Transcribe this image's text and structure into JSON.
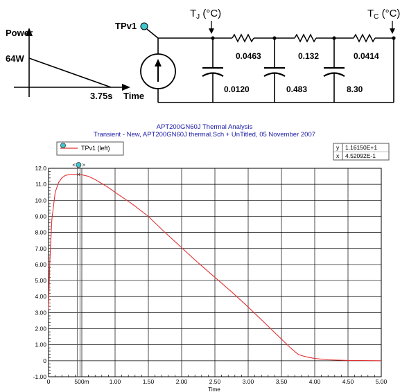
{
  "diagram": {
    "power_label": "Power",
    "power_value": "64W",
    "time_value": "3.75s",
    "time_label": "Time",
    "node_label": "TPv1",
    "tj_label": "T",
    "tj_sub": "J",
    "tj_unit": " (°C)",
    "tc_label": "T",
    "tc_sub": "C",
    "tc_unit": " (°C)",
    "resistors": [
      "0.0463",
      "0.132",
      "0.0414"
    ],
    "capacitors": [
      "0.0120",
      "0.483",
      "8.30"
    ]
  },
  "header": {
    "title": "APT200GN60J Thermal Analysis",
    "subtitle": "Transient - New,    APT200GN60J thermal.Sch + UnTitled,   05 November 2007"
  },
  "legend": {
    "label": "TPv1 (left)"
  },
  "readout": {
    "y_label": "y",
    "y_value": "1.16150E+1",
    "x_label": "x",
    "x_value": "4.52092E-1"
  },
  "cursor": {
    "x": 0.452,
    "y": 11.615
  },
  "chart_data": {
    "type": "line",
    "xlabel": "Time",
    "ylabel": "",
    "xlim": [
      0,
      5
    ],
    "ylim": [
      -1,
      12
    ],
    "x_ticks": [
      "0",
      "500m",
      "1.00",
      "1.50",
      "2.00",
      "2.50",
      "3.00",
      "3.50",
      "4.00",
      "4.50",
      "5.00"
    ],
    "y_ticks": [
      "-1.00",
      "0",
      "1.00",
      "2.00",
      "3.00",
      "4.00",
      "5.00",
      "6.00",
      "7.00",
      "8.00",
      "9.00",
      "10.0",
      "11.0",
      "12.0"
    ],
    "grid": true,
    "series": [
      {
        "name": "TPv1 (left)",
        "color": "#e03030",
        "x": [
          0,
          0.02,
          0.05,
          0.1,
          0.15,
          0.2,
          0.25,
          0.3,
          0.35,
          0.4,
          0.45,
          0.5,
          0.6,
          0.7,
          0.8,
          0.9,
          1.0,
          1.25,
          1.5,
          1.75,
          2.0,
          2.25,
          2.5,
          2.75,
          3.0,
          3.25,
          3.5,
          3.65,
          3.75,
          3.8,
          3.9,
          4.0,
          4.2,
          4.5,
          5.0
        ],
        "y": [
          3.2,
          6.2,
          8.8,
          10.5,
          11.1,
          11.4,
          11.55,
          11.6,
          11.62,
          11.62,
          11.615,
          11.6,
          11.5,
          11.3,
          11.05,
          10.8,
          10.5,
          9.8,
          9.0,
          8.0,
          7.05,
          6.1,
          5.2,
          4.3,
          3.35,
          2.35,
          1.35,
          0.75,
          0.4,
          0.32,
          0.22,
          0.14,
          0.06,
          0.02,
          0.0
        ]
      }
    ]
  }
}
